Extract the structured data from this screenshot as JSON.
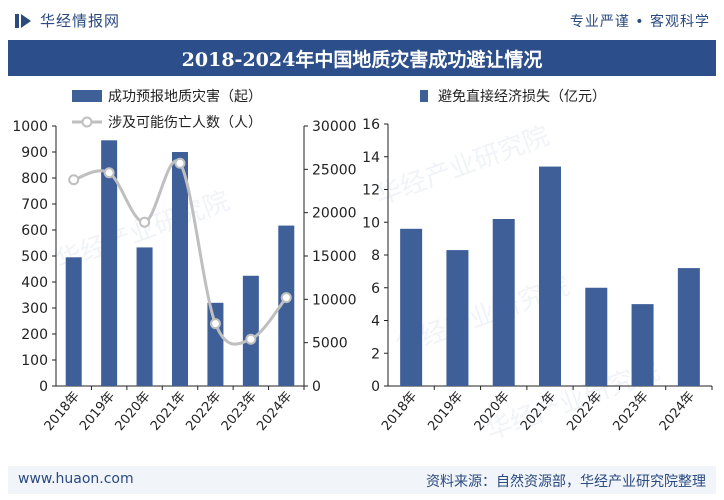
{
  "header": {
    "logo_text": "华经情报网",
    "tagline": "专业严谨 • 客观科学"
  },
  "title": "2018-2024年中国地质灾害成功避让情况",
  "footer": {
    "url": "www.huaon.com",
    "source": "资料来源：自然资源部，华经产业研究院整理"
  },
  "watermark": "华经产业研究院",
  "colors": {
    "bar": "#3f5f99",
    "line": "#bfbfbf",
    "title_bg": "#2c4e8a"
  },
  "chart_data": [
    {
      "type": "bar+line",
      "categories": [
        "2018年",
        "2019年",
        "2020年",
        "2021年",
        "2022年",
        "2023年",
        "2024年"
      ],
      "series": [
        {
          "name": "成功预报地质灾害（起）",
          "type": "bar",
          "axis": "left",
          "values": [
            495,
            945,
            533,
            900,
            320,
            424,
            617
          ]
        },
        {
          "name": "涉及可能伤亡人数（人）",
          "type": "line",
          "axis": "right",
          "values": [
            23800,
            24600,
            18900,
            25700,
            7200,
            5400,
            10200
          ]
        }
      ],
      "left_axis": {
        "min": 0,
        "max": 1000,
        "ticks": [
          0,
          100,
          200,
          300,
          400,
          500,
          600,
          700,
          800,
          900,
          1000
        ]
      },
      "right_axis": {
        "min": 0,
        "max": 30000,
        "ticks": [
          0,
          5000,
          10000,
          15000,
          20000,
          25000,
          30000
        ]
      },
      "legend_position": "top-left"
    },
    {
      "type": "bar",
      "categories": [
        "2018年",
        "2019年",
        "2020年",
        "2021年",
        "2022年",
        "2023年",
        "2024年"
      ],
      "series": [
        {
          "name": "避免直接经济损失（亿元）",
          "values": [
            9.6,
            8.3,
            10.2,
            13.4,
            6.0,
            5.0,
            7.2
          ]
        }
      ],
      "y_axis": {
        "min": 0,
        "max": 16,
        "ticks": [
          0,
          2,
          4,
          6,
          8,
          10,
          12,
          14,
          16
        ]
      },
      "legend_position": "top-left"
    }
  ]
}
